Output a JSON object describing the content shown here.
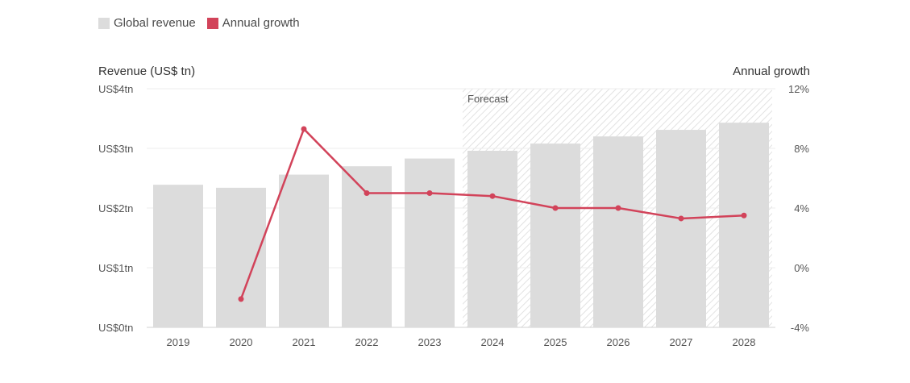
{
  "legend": {
    "revenue_label": "Global revenue",
    "growth_label": "Annual growth"
  },
  "colors": {
    "bar": "#dcdcdc",
    "line": "#d2435a",
    "grid": "#ececec",
    "forecast_hatch": "#e2e2e2"
  },
  "forecast_label": "Forecast",
  "chart_data": {
    "type": "bar",
    "categories": [
      "2019",
      "2020",
      "2021",
      "2022",
      "2023",
      "2024",
      "2025",
      "2026",
      "2027",
      "2028"
    ],
    "series": [
      {
        "name": "Global revenue",
        "type": "bar",
        "axis": "left",
        "values": [
          2.39,
          2.34,
          2.56,
          2.7,
          2.83,
          2.96,
          3.08,
          3.2,
          3.31,
          3.43
        ]
      },
      {
        "name": "Annual growth",
        "type": "line",
        "axis": "right",
        "values": [
          null,
          -2.1,
          9.3,
          5.0,
          5.0,
          4.8,
          4.0,
          4.0,
          3.3,
          3.5
        ]
      }
    ],
    "ylabel": "Revenue (US$ tn)",
    "y2label": "Annual growth",
    "ylim": [
      0,
      4
    ],
    "y2lim": [
      -4,
      12
    ],
    "yticks": [
      "US$0tn",
      "US$1tn",
      "US$2tn",
      "US$3tn",
      "US$4tn"
    ],
    "y2ticks": [
      "-4%",
      "0%",
      "4%",
      "8%",
      "12%"
    ],
    "forecast_start": "2024",
    "grid": true,
    "legend_position": "top-left"
  }
}
